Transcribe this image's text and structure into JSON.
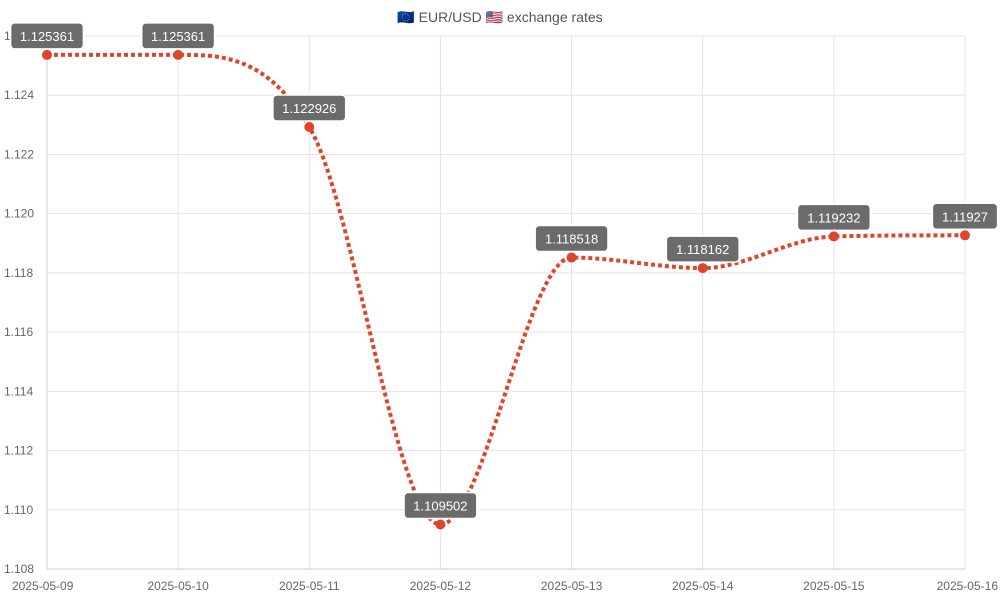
{
  "chart_data": {
    "type": "line",
    "title": {
      "icon_left": "eu-flag-icon",
      "pair": "EUR/USD",
      "icon_right": "us-flag-icon",
      "suffix": "exchange rates"
    },
    "x": [
      "2025-05-09",
      "2025-05-10",
      "2025-05-11",
      "2025-05-12",
      "2025-05-13",
      "2025-05-14",
      "2025-05-15",
      "2025-05-16"
    ],
    "series": [
      {
        "values": [
          1.125361,
          1.125361,
          1.122926,
          1.109502,
          1.118518,
          1.118162,
          1.119232,
          1.11927
        ],
        "labels": [
          "1.125361",
          "1.125361",
          "1.122926",
          "1.109502",
          "1.118518",
          "1.118162",
          "1.119232",
          "1.11927"
        ],
        "color": "#e0442c",
        "line_style": "dotted",
        "smooth": true
      }
    ],
    "ylim": [
      1.108,
      1.126
    ],
    "y_ticks": [
      "1.108",
      "1.110",
      "1.112",
      "1.114",
      "1.116",
      "1.118",
      "1.120",
      "1.122",
      "1.124",
      "1.126"
    ],
    "grid": true,
    "legend": "none",
    "colors": {
      "label_bg": "#6b6b6b",
      "grid": "#e4e4e4"
    }
  }
}
